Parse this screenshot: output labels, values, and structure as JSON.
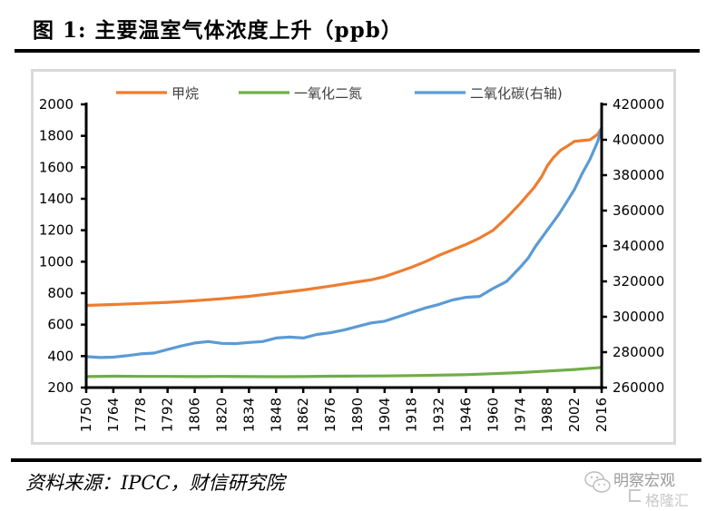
{
  "figure": {
    "title": "图 1:  主要温室气体浓度上升（ppb）",
    "source": "资料来源：IPCC，财信研究院"
  },
  "watermark": {
    "line1": "明察宏观",
    "line2": "格隆汇",
    "icon": "wechat-icon"
  },
  "chart_data": {
    "type": "line",
    "title": "主要温室气体浓度上升（ppb）",
    "xlabel": "",
    "ylabel": "",
    "y2label": "",
    "x_ticks": [
      "1750",
      "1764",
      "1778",
      "1792",
      "1806",
      "1820",
      "1834",
      "1848",
      "1862",
      "1876",
      "1890",
      "1904",
      "1918",
      "1932",
      "1946",
      "1960",
      "1974",
      "1988",
      "2002",
      "2016"
    ],
    "xlim": [
      1750,
      2016
    ],
    "ylim": [
      200,
      2000
    ],
    "y_ticks": [
      "2000",
      "1800",
      "1600",
      "1400",
      "1200",
      "1000",
      "800",
      "600",
      "400",
      "200"
    ],
    "y_tick_values": [
      2000,
      1800,
      1600,
      1400,
      1200,
      1000,
      800,
      600,
      400,
      200
    ],
    "y2lim": [
      260000,
      420000
    ],
    "y2_ticks": [
      "420000",
      "400000",
      "380000",
      "360000",
      "340000",
      "320000",
      "300000",
      "280000",
      "260000"
    ],
    "y2_tick_values": [
      420000,
      400000,
      380000,
      360000,
      340000,
      320000,
      300000,
      280000,
      260000
    ],
    "grid": false,
    "legend_position": "top",
    "series": [
      {
        "name": "甲烷",
        "color": "#ed7d31",
        "axis": "left",
        "x": [
          1750,
          1764,
          1778,
          1792,
          1806,
          1820,
          1834,
          1848,
          1862,
          1876,
          1890,
          1897,
          1904,
          1911,
          1918,
          1925,
          1932,
          1939,
          1946,
          1953,
          1960,
          1967,
          1974,
          1981,
          1985,
          1988,
          1991,
          1995,
          1999,
          2002,
          2006,
          2010,
          2014,
          2016
        ],
        "y": [
          722,
          728,
          735,
          742,
          752,
          765,
          780,
          800,
          820,
          845,
          872,
          885,
          905,
          935,
          965,
          1000,
          1040,
          1075,
          1110,
          1150,
          1200,
          1280,
          1370,
          1470,
          1540,
          1610,
          1660,
          1710,
          1740,
          1765,
          1770,
          1775,
          1810,
          1850
        ]
      },
      {
        "name": "一氧化二氮",
        "color": "#70ad47",
        "axis": "left",
        "x": [
          1750,
          1764,
          1778,
          1792,
          1806,
          1820,
          1834,
          1848,
          1862,
          1876,
          1890,
          1904,
          1918,
          1932,
          1946,
          1960,
          1974,
          1988,
          2002,
          2016
        ],
        "y": [
          270,
          272,
          271,
          271,
          270,
          271,
          270,
          269,
          270,
          272,
          273,
          274,
          276,
          279,
          282,
          288,
          295,
          305,
          315,
          328
        ]
      },
      {
        "name": "二氧化碳(右轴)",
        "color": "#5b9bd5",
        "axis": "right",
        "x": [
          1750,
          1757,
          1764,
          1771,
          1778,
          1785,
          1792,
          1799,
          1806,
          1813,
          1820,
          1827,
          1834,
          1841,
          1848,
          1855,
          1862,
          1869,
          1876,
          1883,
          1890,
          1897,
          1904,
          1911,
          1918,
          1925,
          1932,
          1939,
          1946,
          1953,
          1960,
          1967,
          1974,
          1978,
          1982,
          1986,
          1990,
          1994,
          1998,
          2002,
          2006,
          2010,
          2014,
          2016
        ],
        "y": [
          277500,
          277000,
          277200,
          278000,
          279000,
          279500,
          281500,
          283500,
          285200,
          286000,
          285000,
          284800,
          285500,
          286000,
          288000,
          288500,
          288000,
          290000,
          291000,
          292500,
          294500,
          296500,
          297500,
          300000,
          302500,
          305000,
          307000,
          309500,
          311000,
          311500,
          316000,
          320000,
          328000,
          333000,
          340000,
          346000,
          352000,
          358000,
          365000,
          372000,
          381000,
          389000,
          399000,
          407000
        ]
      }
    ]
  }
}
